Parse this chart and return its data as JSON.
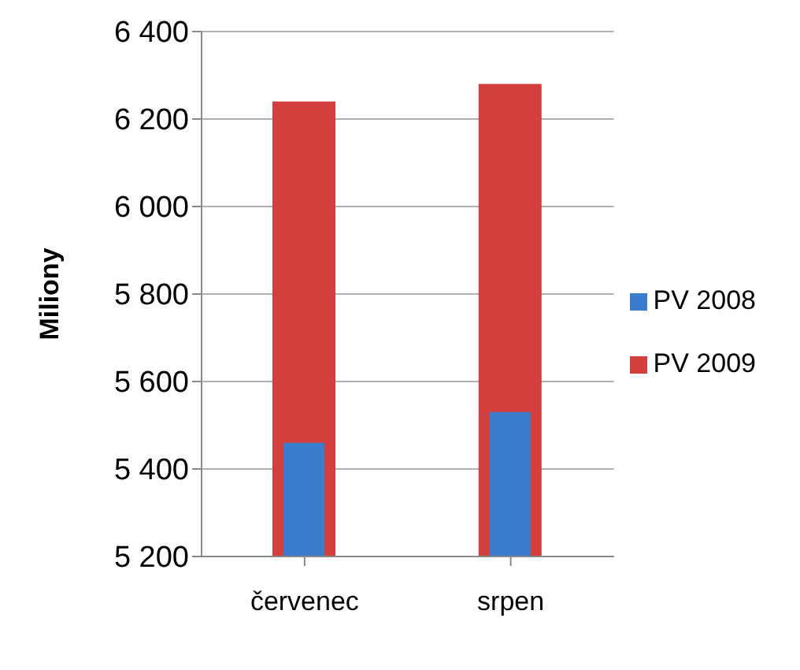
{
  "chart_data": {
    "type": "bar",
    "ylabel": "Miliony",
    "categories": [
      "červenec",
      "srpen"
    ],
    "series": [
      {
        "name": "PV 2009",
        "color": "#d33f3c",
        "values": [
          6240,
          6280
        ]
      },
      {
        "name": "PV 2008",
        "color": "#3a7dcc",
        "values": [
          5460,
          5530
        ]
      }
    ],
    "ylim": [
      5200,
      6400
    ],
    "yticks": [
      {
        "value": 5200,
        "label": "5 200"
      },
      {
        "value": 5400,
        "label": "5 400"
      },
      {
        "value": 5600,
        "label": "5 600"
      },
      {
        "value": 5800,
        "label": "5 800"
      },
      {
        "value": 6000,
        "label": "6 000"
      },
      {
        "value": 6200,
        "label": "6 200"
      },
      {
        "value": 6400,
        "label": "6 400"
      }
    ],
    "grid": "y",
    "legend": "right"
  }
}
